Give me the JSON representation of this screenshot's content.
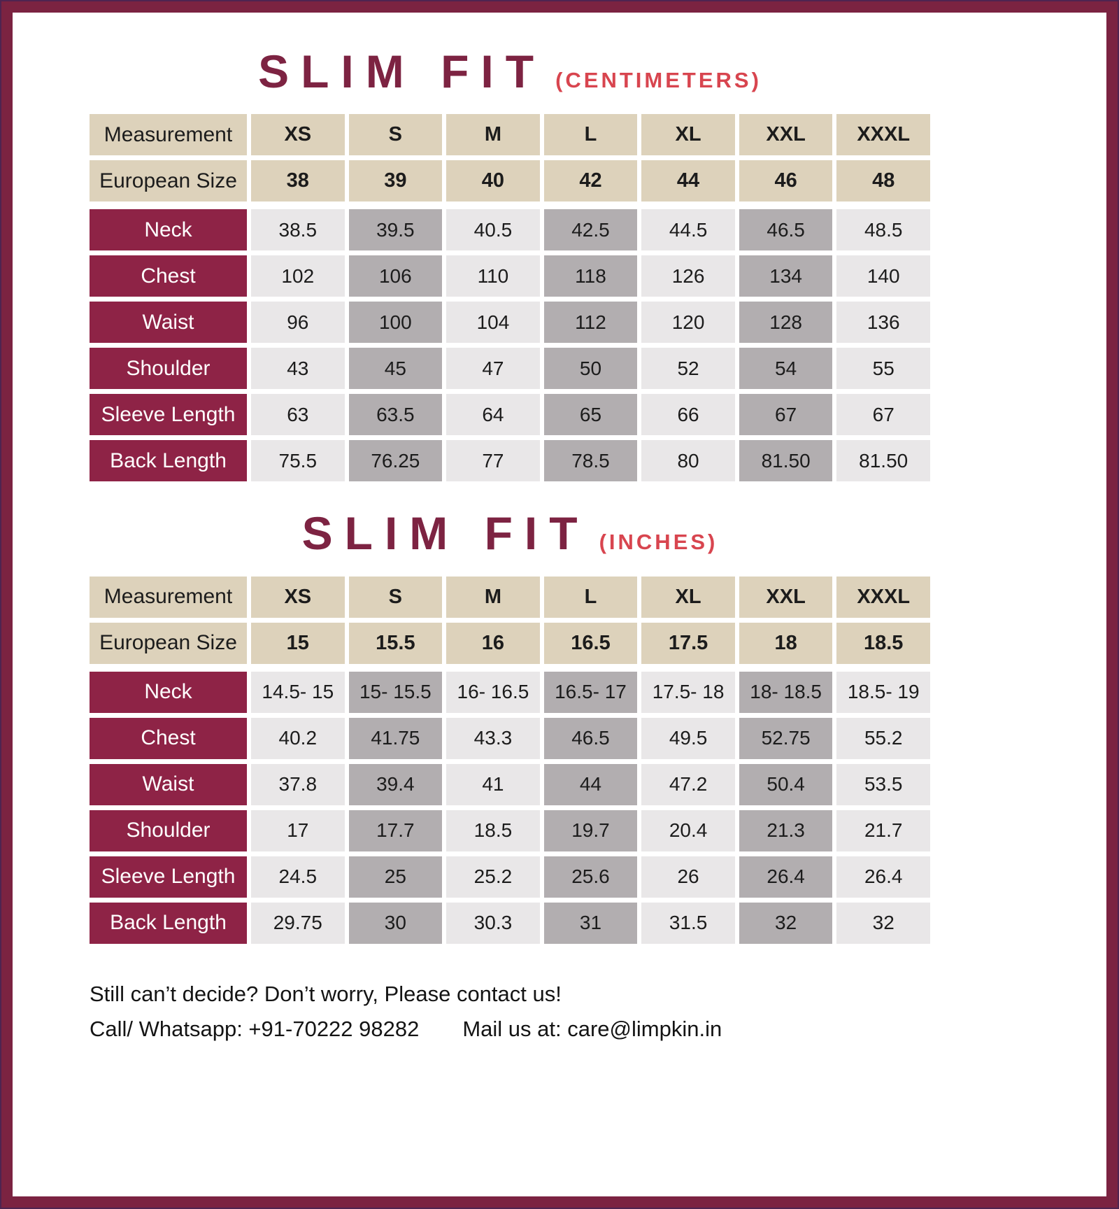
{
  "colors": {
    "border_maroon": "#7b2341",
    "border_edge_dark": "#4e2450",
    "title_maroon": "#7d2342",
    "unit_red": "#d8454f",
    "label_maroon": "#8e2346",
    "header_beige": "#ddd2bb",
    "column_light_gray": "#e9e7e8",
    "column_dark_gray": "#b2aeb0"
  },
  "tables": [
    {
      "title": "SLIM FIT",
      "unit": "(CENTIMETERS)",
      "header": [
        "Measurement",
        "XS",
        "S",
        "M",
        "L",
        "XL",
        "XXL",
        "XXXL"
      ],
      "european_label": "European Size",
      "european": [
        "38",
        "39",
        "40",
        "42",
        "44",
        "46",
        "48"
      ],
      "rows": [
        {
          "label": "Neck",
          "values": [
            "38.5",
            "39.5",
            "40.5",
            "42.5",
            "44.5",
            "46.5",
            "48.5"
          ]
        },
        {
          "label": "Chest",
          "values": [
            "102",
            "106",
            "110",
            "118",
            "126",
            "134",
            "140"
          ]
        },
        {
          "label": "Waist",
          "values": [
            "96",
            "100",
            "104",
            "112",
            "120",
            "128",
            "136"
          ]
        },
        {
          "label": "Shoulder",
          "values": [
            "43",
            "45",
            "47",
            "50",
            "52",
            "54",
            "55"
          ]
        },
        {
          "label": "Sleeve Length",
          "values": [
            "63",
            "63.5",
            "64",
            "65",
            "66",
            "67",
            "67"
          ]
        },
        {
          "label": "Back Length",
          "values": [
            "75.5",
            "76.25",
            "77",
            "78.5",
            "80",
            "81.50",
            "81.50"
          ]
        }
      ]
    },
    {
      "title": "SLIM FIT",
      "unit": "(INCHES)",
      "header": [
        "Measurement",
        "XS",
        "S",
        "M",
        "L",
        "XL",
        "XXL",
        "XXXL"
      ],
      "european_label": "European Size",
      "european": [
        "15",
        "15.5",
        "16",
        "16.5",
        "17.5",
        "18",
        "18.5"
      ],
      "rows": [
        {
          "label": "Neck",
          "values": [
            "14.5- 15",
            "15- 15.5",
            "16- 16.5",
            "16.5- 17",
            "17.5- 18",
            "18- 18.5",
            "18.5- 19"
          ]
        },
        {
          "label": "Chest",
          "values": [
            "40.2",
            "41.75",
            "43.3",
            "46.5",
            "49.5",
            "52.75",
            "55.2"
          ]
        },
        {
          "label": "Waist",
          "values": [
            "37.8",
            "39.4",
            "41",
            "44",
            "47.2",
            "50.4",
            "53.5"
          ]
        },
        {
          "label": "Shoulder",
          "values": [
            "17",
            "17.7",
            "18.5",
            "19.7",
            "20.4",
            "21.3",
            "21.7"
          ]
        },
        {
          "label": "Sleeve Length",
          "values": [
            "24.5",
            "25",
            "25.2",
            "25.6",
            "26",
            "26.4",
            "26.4"
          ]
        },
        {
          "label": "Back Length",
          "values": [
            "29.75",
            "30",
            "30.3",
            "31",
            "31.5",
            "32",
            "32"
          ]
        }
      ]
    }
  ],
  "footer": {
    "line1": "Still can’t decide? Don’t worry, Please contact us!",
    "call": "Call/ Whatsapp: +91-70222 98282",
    "mail": "Mail us at: care@limpkin.in"
  }
}
